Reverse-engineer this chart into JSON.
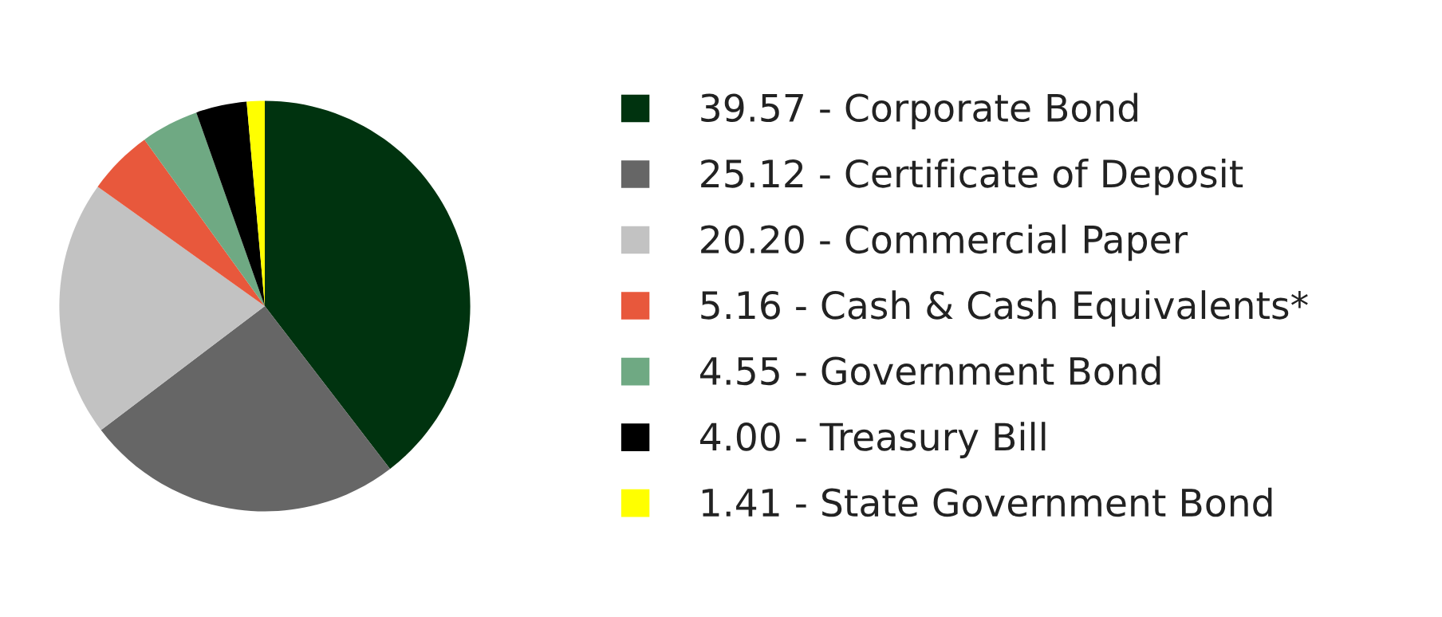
{
  "chart_data": {
    "type": "pie",
    "categories": [
      "39.57 - Corporate Bond",
      "25.12 - Certificate of Deposit",
      "20.20 - Commercial Paper",
      "5.16 - Cash & Cash Equivalents*",
      "4.55 - Government Bond",
      "4.00 - Treasury Bill",
      "1.41 - State Government Bond"
    ],
    "values": [
      39.57,
      25.12,
      20.2,
      5.16,
      4.55,
      4.0,
      1.41
    ],
    "colors": [
      "#00330f",
      "#666666",
      "#c2c2c2",
      "#e8583c",
      "#6fa983",
      "#000000",
      "#ffff00"
    ],
    "legend": "right"
  }
}
